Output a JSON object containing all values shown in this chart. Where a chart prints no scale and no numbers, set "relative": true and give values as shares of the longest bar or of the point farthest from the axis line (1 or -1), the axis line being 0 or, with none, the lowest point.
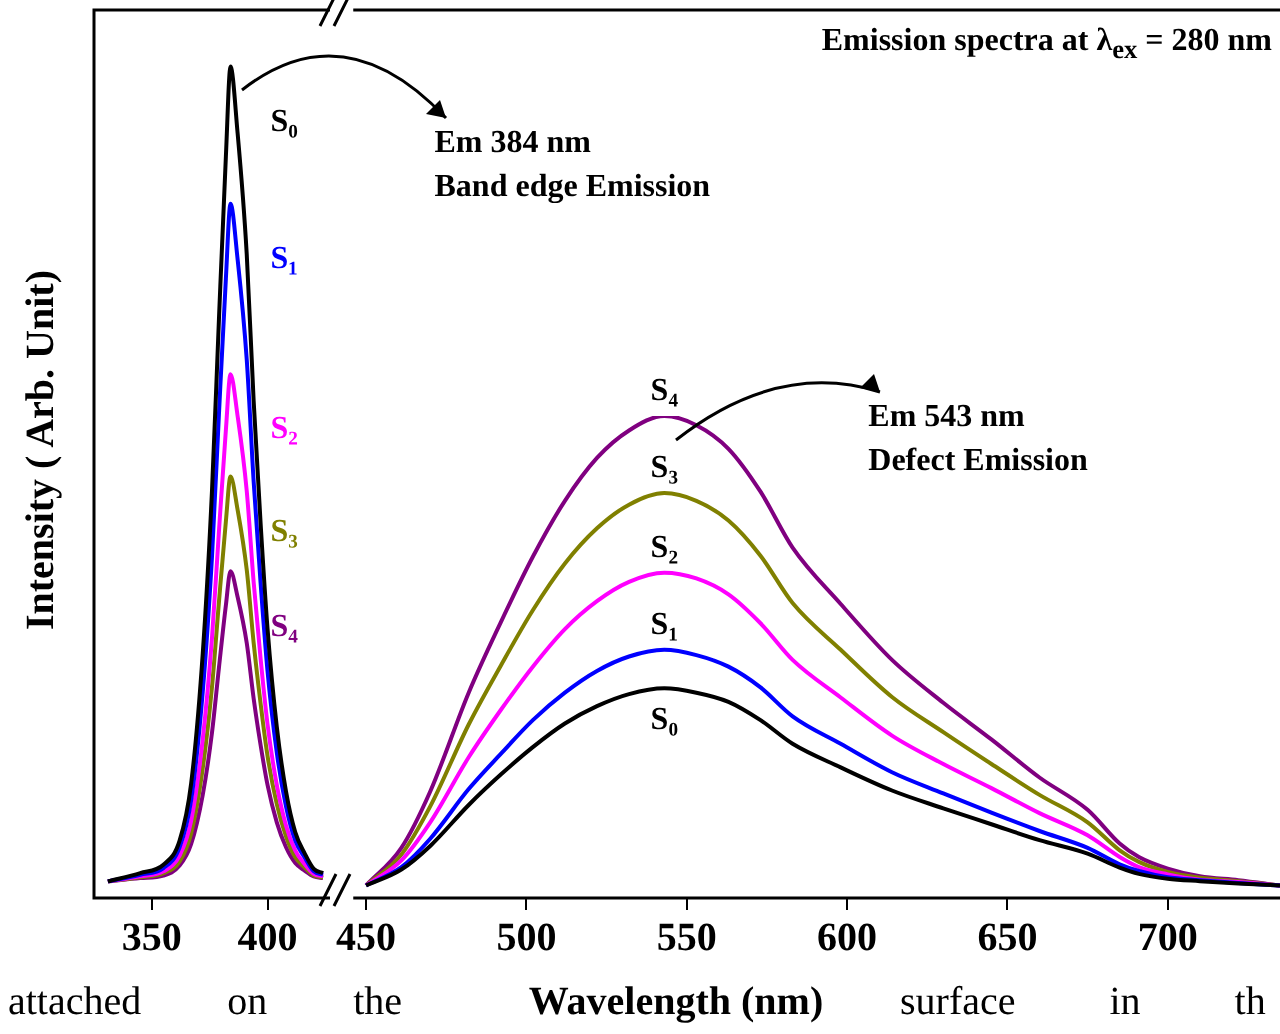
{
  "chart_data": [
    {
      "type": "line",
      "ylabel": "Intensity ( Arb. Unit)",
      "relative": true,
      "legend": false,
      "marker": "none",
      "line_style": "solid",
      "xlim": [
        325,
        427
      ],
      "xticks": [
        350,
        400
      ],
      "x": [
        331,
        345,
        355,
        362,
        367,
        372,
        376,
        379,
        382,
        384,
        387,
        391,
        394,
        397,
        400,
        404,
        408,
        412,
        416,
        420,
        424
      ],
      "annotations": [
        "Em 384 nm\nBand edge Emission"
      ],
      "series": [
        {
          "name": "S₀",
          "color": "#000000",
          "values": [
            0.02,
            0.03,
            0.04,
            0.069,
            0.138,
            0.294,
            0.49,
            0.696,
            0.892,
            1.0,
            0.922,
            0.775,
            0.598,
            0.451,
            0.324,
            0.206,
            0.128,
            0.079,
            0.054,
            0.035,
            0.03
          ]
        },
        {
          "name": "S₁",
          "color": "#0000ff",
          "values": [
            0.02,
            0.028,
            0.036,
            0.061,
            0.118,
            0.248,
            0.411,
            0.582,
            0.745,
            0.835,
            0.77,
            0.648,
            0.501,
            0.379,
            0.273,
            0.175,
            0.11,
            0.069,
            0.049,
            0.032,
            0.028
          ]
        },
        {
          "name": "S₂",
          "color": "#ff00ff",
          "values": [
            0.02,
            0.026,
            0.032,
            0.051,
            0.093,
            0.191,
            0.313,
            0.441,
            0.563,
            0.63,
            0.581,
            0.49,
            0.38,
            0.288,
            0.209,
            0.136,
            0.087,
            0.057,
            0.041,
            0.029,
            0.026
          ]
        },
        {
          "name": "S₃",
          "color": "#808000",
          "values": [
            0.02,
            0.025,
            0.03,
            0.044,
            0.078,
            0.156,
            0.254,
            0.356,
            0.453,
            0.507,
            0.468,
            0.395,
            0.307,
            0.234,
            0.171,
            0.113,
            0.074,
            0.049,
            0.037,
            0.027,
            0.025
          ]
        },
        {
          "name": "S₄",
          "color": "#800080",
          "values": [
            0.02,
            0.024,
            0.027,
            0.039,
            0.065,
            0.124,
            0.199,
            0.277,
            0.352,
            0.393,
            0.363,
            0.307,
            0.24,
            0.184,
            0.136,
            0.091,
            0.061,
            0.042,
            0.033,
            0.026,
            0.024
          ]
        }
      ]
    },
    {
      "type": "line",
      "title": "Emission spectra at λ$_{ex}$ = 280 nm",
      "xlabel": "Wavelength (nm)",
      "relative": true,
      "legend": false,
      "marker": "none",
      "line_style": "solid",
      "xlim": [
        446,
        735
      ],
      "xticks": [
        450,
        500,
        550,
        600,
        650,
        700
      ],
      "x": [
        450,
        461,
        470,
        482,
        492,
        502,
        512,
        522,
        532,
        543,
        553,
        563,
        573,
        583,
        598,
        614,
        630,
        645,
        660,
        675,
        685,
        691,
        700,
        710,
        722,
        735
      ],
      "annotations": [
        "Em 543 nm\nDefect Emission",
        "attached on the",
        "surface in th"
      ],
      "series": [
        {
          "name": "S₀",
          "color": "#000000",
          "values": [
            0.026,
            0.059,
            0.108,
            0.193,
            0.256,
            0.313,
            0.362,
            0.398,
            0.423,
            0.435,
            0.426,
            0.407,
            0.369,
            0.32,
            0.271,
            0.223,
            0.186,
            0.153,
            0.12,
            0.092,
            0.063,
            0.05,
            0.04,
            0.035,
            0.03,
            0.026
          ]
        },
        {
          "name": "S₁",
          "color": "#0000ff",
          "values": [
            0.026,
            0.064,
            0.123,
            0.226,
            0.299,
            0.369,
            0.426,
            0.471,
            0.501,
            0.515,
            0.504,
            0.48,
            0.437,
            0.377,
            0.32,
            0.261,
            0.217,
            0.177,
            0.139,
            0.104,
            0.07,
            0.056,
            0.043,
            0.037,
            0.031,
            0.026
          ]
        },
        {
          "name": "S₂",
          "color": "#ff00ff",
          "values": [
            0.026,
            0.078,
            0.157,
            0.292,
            0.39,
            0.48,
            0.558,
            0.616,
            0.656,
            0.675,
            0.663,
            0.63,
            0.57,
            0.494,
            0.416,
            0.337,
            0.278,
            0.228,
            0.176,
            0.13,
            0.085,
            0.064,
            0.049,
            0.038,
            0.033,
            0.026
          ]
        },
        {
          "name": "S₃",
          "color": "#808000",
          "values": [
            0.026,
            0.09,
            0.19,
            0.36,
            0.482,
            0.597,
            0.694,
            0.767,
            0.816,
            0.84,
            0.824,
            0.783,
            0.71,
            0.612,
            0.515,
            0.417,
            0.344,
            0.278,
            0.214,
            0.157,
            0.099,
            0.075,
            0.054,
            0.042,
            0.035,
            0.026
          ]
        },
        {
          "name": "S₄",
          "color": "#800080",
          "values": [
            0.026,
            0.104,
            0.221,
            0.426,
            0.572,
            0.708,
            0.824,
            0.913,
            0.97,
            1.0,
            0.981,
            0.932,
            0.843,
            0.727,
            0.61,
            0.494,
            0.405,
            0.329,
            0.25,
            0.183,
            0.113,
            0.085,
            0.061,
            0.045,
            0.037,
            0.026
          ]
        }
      ]
    }
  ]
}
